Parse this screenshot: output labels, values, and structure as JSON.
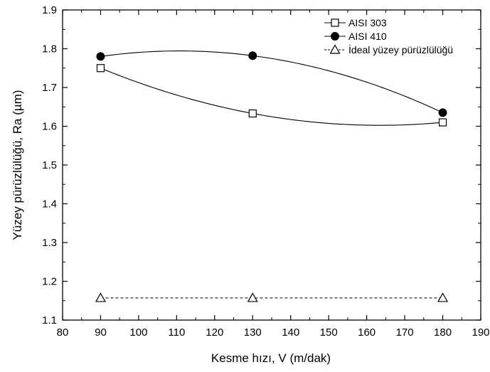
{
  "chart_data": {
    "type": "scatter",
    "title": "",
    "xlabel": "Kesme hızı, V (m/dak)",
    "ylabel": "Yüzey pürüzlülüğü, Ra (µm)",
    "xlim": [
      80,
      190
    ],
    "ylim": [
      1.1,
      1.9
    ],
    "xticks": [
      80,
      90,
      100,
      110,
      120,
      130,
      140,
      150,
      160,
      170,
      180,
      190
    ],
    "xtick_labels": [
      "80",
      "90",
      "100",
      "110",
      "120",
      "130",
      "140",
      "150",
      "160",
      "170",
      "180",
      "190"
    ],
    "yticks": [
      1.1,
      1.2,
      1.3,
      1.4,
      1.5,
      1.6,
      1.7,
      1.8,
      1.9
    ],
    "ytick_labels": [
      "1.1",
      "1.2",
      "1.3",
      "1.4",
      "1.5",
      "1.6",
      "1.7",
      "1.8",
      "1.9"
    ],
    "grid": false,
    "legend_position": "top-right",
    "series": [
      {
        "name": "AISI 303",
        "marker": "open-square",
        "line": "smooth-fit",
        "color": "#000000",
        "x": [
          90,
          130,
          180
        ],
        "y": [
          1.75,
          1.633,
          1.61
        ]
      },
      {
        "name": "AISI 410",
        "marker": "filled-circle",
        "line": "smooth-fit",
        "color": "#000000",
        "x": [
          90,
          130,
          180
        ],
        "y": [
          1.78,
          1.782,
          1.635
        ]
      },
      {
        "name": "İdeal yüzey pürüzlülüğü",
        "marker": "open-triangle",
        "line": "dashed",
        "color": "#000000",
        "x": [
          90,
          130,
          180
        ],
        "y": [
          1.157,
          1.157,
          1.157
        ]
      }
    ]
  }
}
